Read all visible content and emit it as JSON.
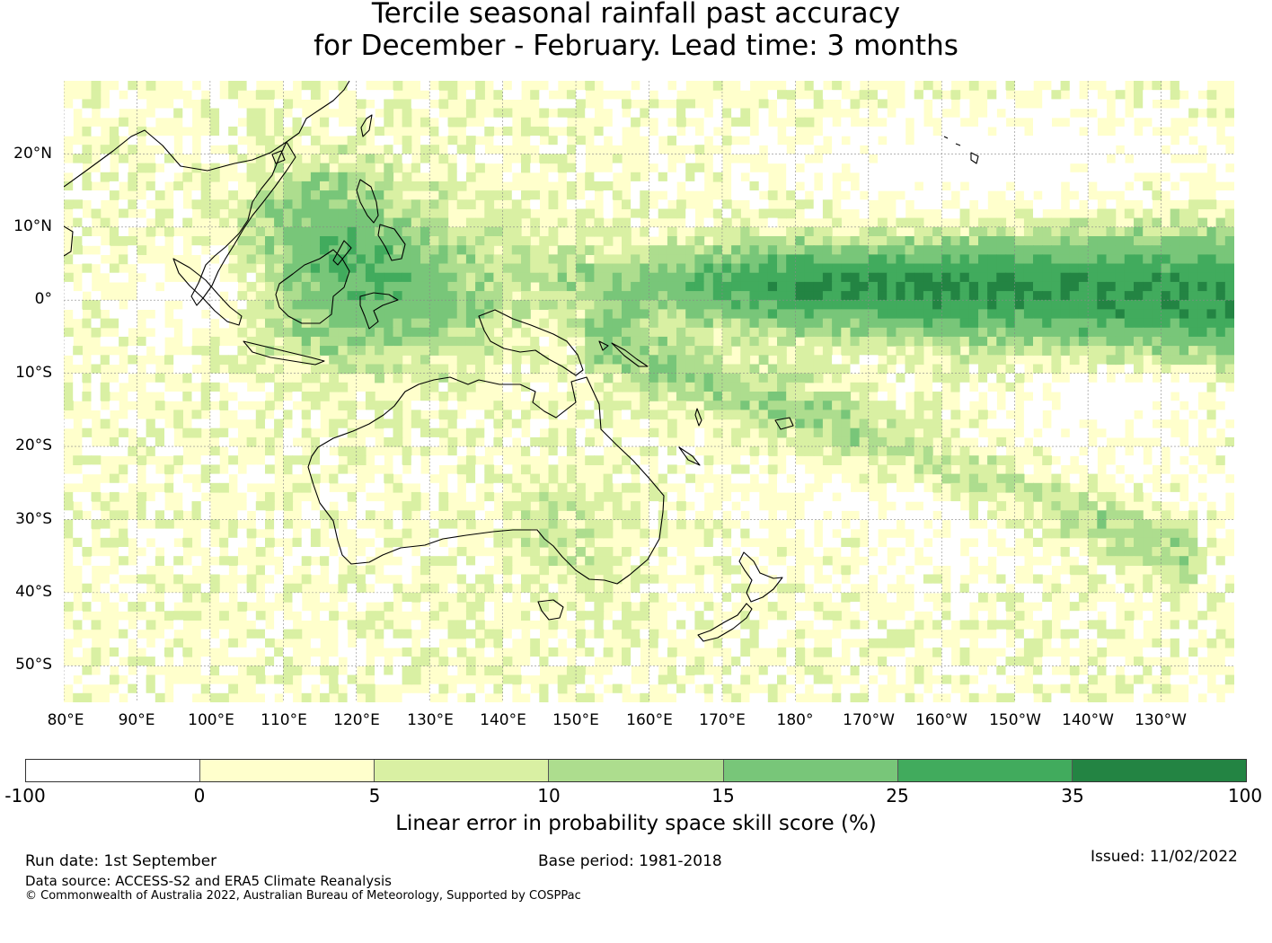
{
  "title": {
    "line1": "Tercile seasonal rainfall past accuracy",
    "line2": "for December - February. Lead time: 3 months"
  },
  "map": {
    "lon_labels": [
      "80°E",
      "90°E",
      "100°E",
      "110°E",
      "120°E",
      "130°E",
      "140°E",
      "150°E",
      "160°E",
      "170°E",
      "180°",
      "170°W",
      "160°W",
      "150°W",
      "140°W",
      "130°W"
    ],
    "lat_labels": [
      "20°N",
      "10°N",
      "0°",
      "10°S",
      "20°S",
      "30°S",
      "40°S",
      "50°S"
    ],
    "lon_range": [
      80,
      240
    ],
    "lat_range": [
      -55,
      30
    ],
    "gridlines": true
  },
  "colorbar": {
    "ticks": [
      "-100",
      "0",
      "5",
      "10",
      "15",
      "25",
      "35",
      "100"
    ],
    "colors": [
      "#ffffff",
      "#ffffcc",
      "#d9f0a3",
      "#addd8e",
      "#78c679",
      "#41ab5d",
      "#238443"
    ],
    "label": "Linear error in probability space skill score (%)"
  },
  "footer": {
    "run_date": "Run date: 1st September",
    "base_period": "Base period: 1981-2018",
    "issued": "Issued: 11/02/2022",
    "data_source": "Data source: ACCESS-S2 and ERA5 Climate Reanalysis",
    "copyright": "© Commonwealth of Australia 2022, Australian Bureau of Meteorology, Supported by COSPPac"
  }
}
